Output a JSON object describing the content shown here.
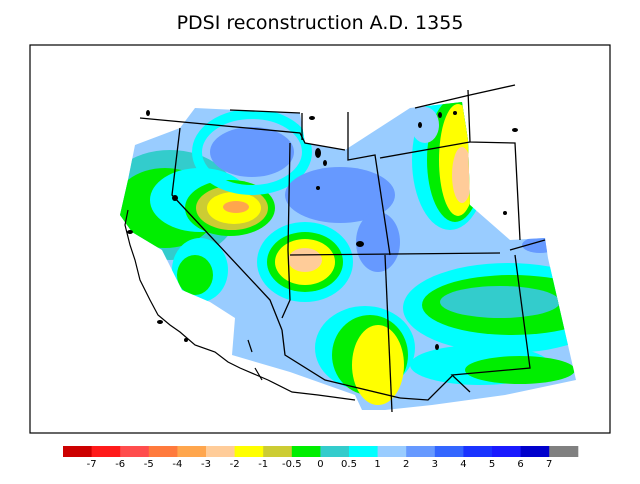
{
  "title": "PDSI reconstruction A.D. 1355",
  "legend": {
    "colors": [
      "#cc0000",
      "#ff1a1a",
      "#ff4d4d",
      "#ff7a3d",
      "#ffa64d",
      "#ffcc99",
      "#ffff00",
      "#cccc33",
      "#00ee00",
      "#33cccc",
      "#00ffff",
      "#99ccff",
      "#6699ff",
      "#3366ff",
      "#1a33ff",
      "#1a1aff",
      "#0000cc",
      "#808080"
    ],
    "tick_labels": [
      "-7",
      "-6",
      "-5",
      "-4",
      "-3",
      "-2",
      "-1",
      "-0.5",
      "0",
      "0.5",
      "1",
      "2",
      "3",
      "4",
      "5",
      "6",
      "7"
    ]
  },
  "palette": {
    "light_blue": "#99ccff",
    "mid_blue": "#6699ff",
    "cyan": "#00ffff",
    "teal": "#33cccc",
    "green": "#00ee00",
    "olive": "#cccc33",
    "yellow": "#ffff00",
    "peach": "#ffcc99",
    "salmon": "#ffa64d"
  }
}
